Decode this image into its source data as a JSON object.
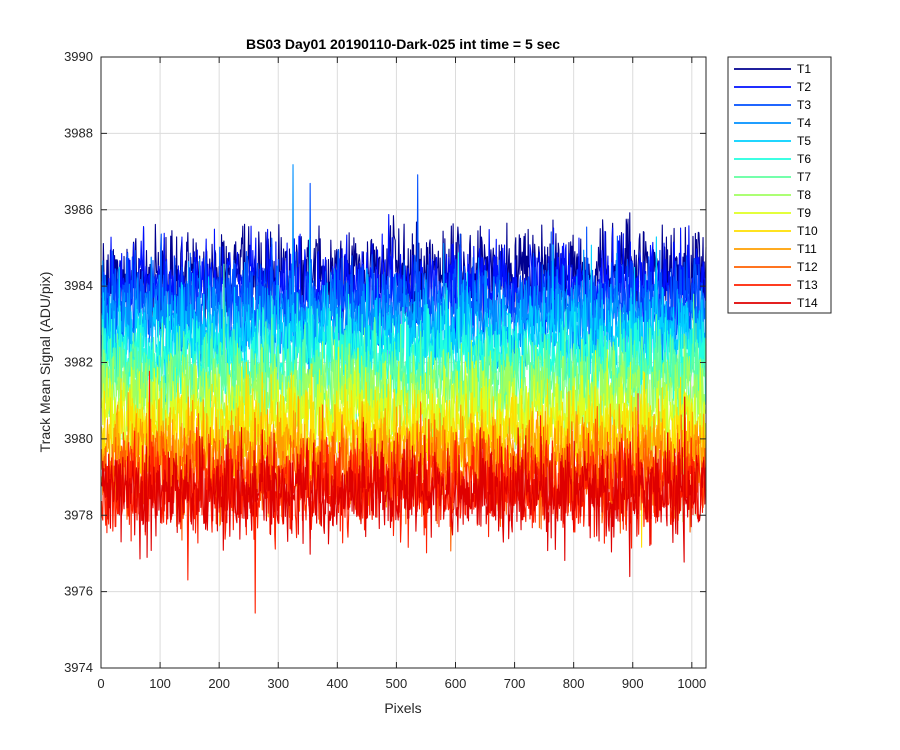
{
  "chart_data": {
    "type": "line",
    "title": "BS03 Day01 20190110-Dark-025 int time = 5 sec",
    "xlabel": "Pixels",
    "ylabel": "Track Mean Signal (ADU/pix)",
    "xlim": [
      0,
      1024
    ],
    "ylim": [
      3974,
      3990
    ],
    "xticks": [
      0,
      100,
      200,
      300,
      400,
      500,
      600,
      700,
      800,
      900,
      1000
    ],
    "yticks": [
      3974,
      3976,
      3978,
      3980,
      3982,
      3984,
      3986,
      3988,
      3990
    ],
    "grid": true,
    "legend_position": "outside-top-right",
    "series": [
      {
        "name": "T1",
        "color": "#00008f",
        "mean": 3984.4,
        "noise": 1.0
      },
      {
        "name": "T2",
        "color": "#0010ff",
        "mean": 3984.0,
        "noise": 1.0
      },
      {
        "name": "T3",
        "color": "#0050ff",
        "mean": 3983.6,
        "noise": 1.0
      },
      {
        "name": "T4",
        "color": "#0090ff",
        "mean": 3983.1,
        "noise": 1.0
      },
      {
        "name": "T5",
        "color": "#00d0ff",
        "mean": 3982.6,
        "noise": 1.0
      },
      {
        "name": "T6",
        "color": "#20ffdf",
        "mean": 3982.1,
        "noise": 1.0
      },
      {
        "name": "T7",
        "color": "#60ff9f",
        "mean": 3981.6,
        "noise": 1.0
      },
      {
        "name": "T8",
        "color": "#a0ff60",
        "mean": 3981.1,
        "noise": 1.0
      },
      {
        "name": "T9",
        "color": "#dfff20",
        "mean": 3980.6,
        "noise": 1.0
      },
      {
        "name": "T10",
        "color": "#ffdf00",
        "mean": 3980.1,
        "noise": 1.0
      },
      {
        "name": "T11",
        "color": "#ff9f00",
        "mean": 3979.6,
        "noise": 1.0
      },
      {
        "name": "T12",
        "color": "#ff6000",
        "mean": 3979.1,
        "noise": 1.0
      },
      {
        "name": "T13",
        "color": "#ff2000",
        "mean": 3978.7,
        "noise": 1.0
      },
      {
        "name": "T14",
        "color": "#df0000",
        "mean": 3978.6,
        "noise": 1.0
      }
    ]
  }
}
